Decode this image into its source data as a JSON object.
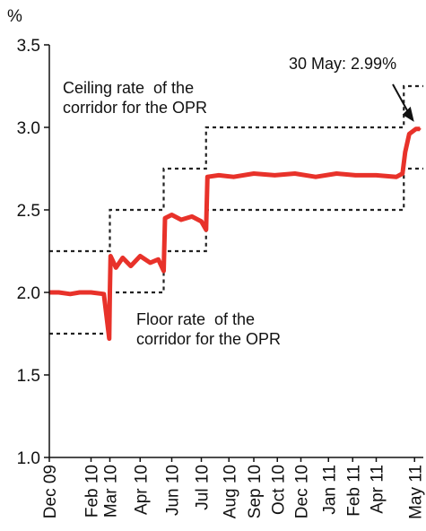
{
  "chart_data": {
    "type": "line",
    "title": "",
    "xlabel": "",
    "ylabel": "%",
    "ylim": [
      1.0,
      3.5
    ],
    "yticks": [
      "1.0",
      "1.5",
      "2.0",
      "2.5",
      "3.0",
      "3.5"
    ],
    "xlim": [
      "2009-12-01",
      "2011-06-10"
    ],
    "xticks": [
      {
        "label": "Dec 09",
        "date": "2009-12-01"
      },
      {
        "label": "Feb 10",
        "date": "2010-02-01"
      },
      {
        "label": "Mar 10",
        "date": "2010-03-01"
      },
      {
        "label": "Apr 10",
        "date": "2010-04-15"
      },
      {
        "label": "Jun 10",
        "date": "2010-06-01"
      },
      {
        "label": "Jul 10",
        "date": "2010-07-15"
      },
      {
        "label": "Aug 10",
        "date": "2010-08-25"
      },
      {
        "label": "Sep 10",
        "date": "2010-10-01"
      },
      {
        "label": "Oct 10",
        "date": "2010-11-05"
      },
      {
        "label": "Dec 10",
        "date": "2010-12-10"
      },
      {
        "label": "Jan 11",
        "date": "2011-01-20"
      },
      {
        "label": "Feb 11",
        "date": "2011-02-25"
      },
      {
        "label": "Apr 11",
        "date": "2011-04-01"
      },
      {
        "label": "May 11",
        "date": "2011-05-28"
      }
    ],
    "series": [
      {
        "name": "",
        "color": "#e8322a",
        "points": [
          {
            "x": "2009-12-01",
            "y": 2.0
          },
          {
            "x": "2009-12-15",
            "y": 2.0
          },
          {
            "x": "2010-01-01",
            "y": 1.99
          },
          {
            "x": "2010-01-15",
            "y": 2.0
          },
          {
            "x": "2010-02-01",
            "y": 2.0
          },
          {
            "x": "2010-02-20",
            "y": 1.99
          },
          {
            "x": "2010-02-28",
            "y": 1.72
          },
          {
            "x": "2010-03-01",
            "y": 2.0
          },
          {
            "x": "2010-03-02",
            "y": 2.22
          },
          {
            "x": "2010-03-10",
            "y": 2.15
          },
          {
            "x": "2010-03-20",
            "y": 2.21
          },
          {
            "x": "2010-04-01",
            "y": 2.16
          },
          {
            "x": "2010-04-15",
            "y": 2.22
          },
          {
            "x": "2010-04-30",
            "y": 2.18
          },
          {
            "x": "2010-05-12",
            "y": 2.2
          },
          {
            "x": "2010-05-20",
            "y": 2.13
          },
          {
            "x": "2010-05-22",
            "y": 2.45
          },
          {
            "x": "2010-06-01",
            "y": 2.47
          },
          {
            "x": "2010-06-15",
            "y": 2.44
          },
          {
            "x": "2010-07-01",
            "y": 2.46
          },
          {
            "x": "2010-07-15",
            "y": 2.43
          },
          {
            "x": "2010-07-22",
            "y": 2.38
          },
          {
            "x": "2010-07-24",
            "y": 2.7
          },
          {
            "x": "2010-08-10",
            "y": 2.71
          },
          {
            "x": "2010-09-01",
            "y": 2.7
          },
          {
            "x": "2010-10-01",
            "y": 2.72
          },
          {
            "x": "2010-11-01",
            "y": 2.71
          },
          {
            "x": "2010-12-01",
            "y": 2.72
          },
          {
            "x": "2011-01-01",
            "y": 2.7
          },
          {
            "x": "2011-02-01",
            "y": 2.72
          },
          {
            "x": "2011-03-01",
            "y": 2.71
          },
          {
            "x": "2011-04-01",
            "y": 2.71
          },
          {
            "x": "2011-05-01",
            "y": 2.7
          },
          {
            "x": "2011-05-10",
            "y": 2.72
          },
          {
            "x": "2011-05-14",
            "y": 2.85
          },
          {
            "x": "2011-05-20",
            "y": 2.96
          },
          {
            "x": "2011-05-30",
            "y": 2.99
          },
          {
            "x": "2011-06-05",
            "y": 2.99
          }
        ]
      }
    ],
    "corridor": {
      "ceiling": [
        {
          "from": "2009-12-01",
          "to": "2010-03-01",
          "y": 2.25
        },
        {
          "from": "2010-03-01",
          "to": "2010-05-20",
          "y": 2.5
        },
        {
          "from": "2010-05-20",
          "to": "2010-07-22",
          "y": 2.75
        },
        {
          "from": "2010-07-22",
          "to": "2011-05-12",
          "y": 3.0
        },
        {
          "from": "2011-05-12",
          "to": "2011-06-10",
          "y": 3.25
        }
      ],
      "floor": [
        {
          "from": "2009-12-01",
          "to": "2010-03-01",
          "y": 1.75
        },
        {
          "from": "2010-03-01",
          "to": "2010-05-20",
          "y": 2.0
        },
        {
          "from": "2010-05-20",
          "to": "2010-07-22",
          "y": 2.25
        },
        {
          "from": "2010-07-22",
          "to": "2011-05-12",
          "y": 2.5
        },
        {
          "from": "2011-05-12",
          "to": "2011-06-10",
          "y": 2.75
        }
      ]
    },
    "annotations": {
      "ceiling": "Ceiling rate  of the\ncorridor for the OPR",
      "floor": "Floor rate  of the\ncorridor for the OPR",
      "last": "30 May: 2.99%"
    },
    "grid": false,
    "legend": "none"
  }
}
